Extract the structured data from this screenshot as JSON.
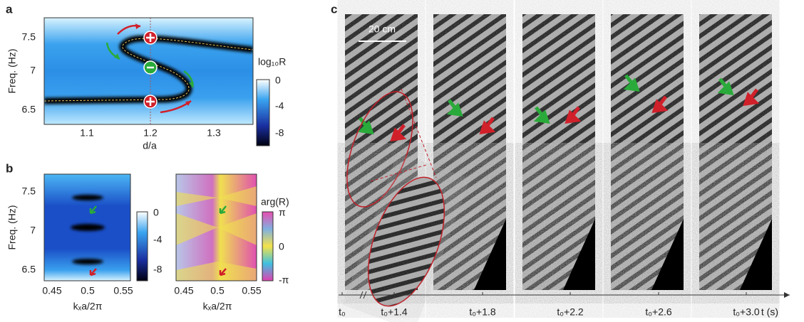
{
  "panels": {
    "a": {
      "label": "a",
      "ylabel": "Freq. (Hz)",
      "xlabel": "d/a",
      "yticks": [
        "7.5",
        "7",
        "6.5"
      ],
      "xticks": [
        "1.1",
        "1.2",
        "1.3"
      ],
      "colorbar": {
        "title": "log₁₀R",
        "ticks": [
          "0",
          "-4",
          "-8"
        ]
      }
    },
    "b": {
      "label": "b",
      "ylabel": "Freq. (Hz)",
      "left": {
        "xlabel": "kₓa/2π",
        "yticks": [
          "7.5",
          "7",
          "6.5"
        ],
        "xticks": [
          "0.45",
          "0.5",
          "0.55"
        ],
        "colorbar": {
          "ticks": [
            "0",
            "-4",
            "-8"
          ]
        }
      },
      "right": {
        "xlabel": "kₓa/2π",
        "xticks": [
          "0.45",
          "0.5",
          "0.55"
        ],
        "colorbar": {
          "title": "arg(R)",
          "ticks": [
            "π",
            "0",
            "-π"
          ]
        }
      }
    },
    "c": {
      "label": "c",
      "scale_bar": "20 cm",
      "times": [
        "t₀",
        "t₀+1.4",
        "t₀+1.8",
        "t₀+2.2",
        "t₀+2.6",
        "t₀+3.0"
      ],
      "axis_label": "t (s)"
    }
  }
}
